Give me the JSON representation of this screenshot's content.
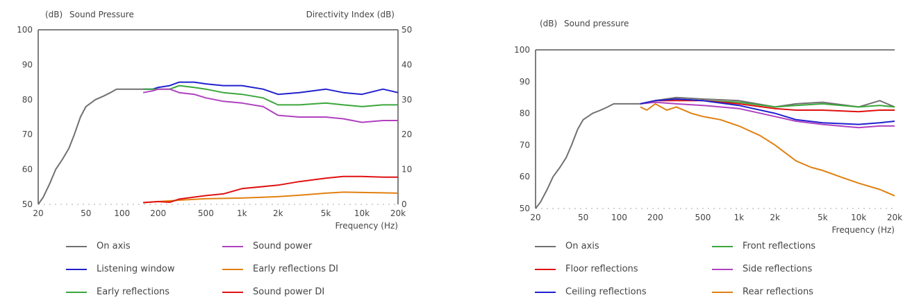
{
  "chart_data": [
    {
      "type": "line",
      "title": "Sound Pressure",
      "ylabel_left": "(dB)",
      "ylabel_right": "Directivity Index  (dB)",
      "xlabel": "Frequency  (Hz)",
      "xscale": "log",
      "xlim": [
        20,
        20000
      ],
      "ylim": [
        50,
        100
      ],
      "ylim_right": [
        0,
        50
      ],
      "xticks": [
        20,
        50,
        100,
        200,
        500,
        1000,
        2000,
        5000,
        10000,
        20000
      ],
      "xtick_labels": [
        "20",
        "50",
        "100",
        "200",
        "500",
        "1k",
        "2k",
        "5k",
        "10k",
        "20k"
      ],
      "yticks": [
        50,
        60,
        70,
        80,
        90,
        100
      ],
      "yticks_right": [
        0,
        10,
        20,
        30,
        40,
        50
      ],
      "legend_placement": "bottom",
      "series": [
        {
          "name": "On axis",
          "color": "#707070",
          "axis": "left",
          "x": [
            20,
            22,
            25,
            28,
            32,
            36,
            40,
            45,
            50,
            60,
            70,
            80,
            90,
            100,
            120,
            150
          ],
          "y": [
            50,
            52,
            56,
            60,
            63,
            66,
            70,
            75,
            78,
            80,
            81,
            82,
            83,
            83,
            83,
            83
          ]
        },
        {
          "name": "Listening window",
          "color": "#2020d0",
          "axis": "left",
          "x": [
            150,
            180,
            200,
            250,
            300,
            400,
            500,
            700,
            1000,
            1500,
            2000,
            3000,
            5000,
            7000,
            10000,
            15000,
            20000
          ],
          "y": [
            83,
            83,
            83.5,
            84,
            85,
            85,
            84.5,
            84,
            84,
            83,
            81.5,
            82,
            83,
            82,
            81.5,
            83,
            82
          ]
        },
        {
          "name": "Early reflections",
          "color": "#3aa63a",
          "axis": "left",
          "x": [
            150,
            180,
            200,
            250,
            300,
            400,
            500,
            700,
            1000,
            1500,
            2000,
            3000,
            5000,
            7000,
            10000,
            15000,
            20000
          ],
          "y": [
            83,
            83,
            83,
            83,
            84,
            83.5,
            83,
            82,
            81.5,
            80.5,
            78.5,
            78.5,
            79,
            78.5,
            78,
            78.5,
            78.5
          ]
        },
        {
          "name": "Sound power",
          "color": "#b040c0",
          "axis": "left",
          "x": [
            150,
            180,
            200,
            250,
            300,
            400,
            500,
            700,
            1000,
            1500,
            2000,
            3000,
            5000,
            7000,
            10000,
            15000,
            20000
          ],
          "y": [
            82,
            82.5,
            83,
            83,
            82,
            81.5,
            80.5,
            79.5,
            79,
            78,
            75.5,
            75,
            75,
            74.5,
            73.5,
            74,
            74
          ]
        },
        {
          "name": "Early reflections DI",
          "color": "#e08010",
          "axis": "right",
          "x": [
            150,
            200,
            300,
            500,
            1000,
            2000,
            3000,
            5000,
            7000,
            10000,
            15000,
            20000
          ],
          "y": [
            0.5,
            0.8,
            1.2,
            1.6,
            1.8,
            2.2,
            2.6,
            3.2,
            3.5,
            3.4,
            3.3,
            3.2
          ]
        },
        {
          "name": "Sound power DI",
          "color": "#e01010",
          "axis": "right",
          "x": [
            150,
            200,
            250,
            300,
            500,
            700,
            1000,
            2000,
            3000,
            5000,
            7000,
            10000,
            15000,
            20000
          ],
          "y": [
            0.5,
            0.8,
            0.6,
            1.5,
            2.5,
            3.0,
            4.5,
            5.5,
            6.5,
            7.5,
            8.0,
            8.0,
            7.8,
            7.8
          ]
        }
      ],
      "legend": [
        [
          "On axis",
          "Sound power"
        ],
        [
          "Listening window",
          "Early reflections DI"
        ],
        [
          "Early reflections",
          "Sound power DI"
        ]
      ]
    },
    {
      "type": "line",
      "title": "Sound pressure",
      "ylabel_left": "(dB)",
      "xlabel": "Frequency  (Hz)",
      "xscale": "log",
      "xlim": [
        20,
        20000
      ],
      "ylim": [
        50,
        100
      ],
      "xticks": [
        20,
        50,
        100,
        200,
        500,
        1000,
        2000,
        5000,
        10000,
        20000
      ],
      "xtick_labels": [
        "20",
        "50",
        "100",
        "200",
        "500",
        "1k",
        "2k",
        "5k",
        "10k",
        "20k"
      ],
      "yticks": [
        50,
        60,
        70,
        80,
        90,
        100
      ],
      "legend_placement": "bottom",
      "series": [
        {
          "name": "On axis",
          "color": "#707070",
          "x": [
            20,
            22,
            25,
            28,
            32,
            36,
            40,
            45,
            50,
            60,
            70,
            80,
            90,
            100,
            120,
            150,
            200,
            300,
            500,
            1000,
            2000,
            3000,
            5000,
            10000,
            15000,
            20000
          ],
          "y": [
            50,
            52,
            56,
            60,
            63,
            66,
            70,
            75,
            78,
            80,
            81,
            82,
            83,
            83,
            83,
            83,
            84,
            85,
            84.5,
            84,
            82,
            83,
            83.5,
            82,
            84,
            82
          ]
        },
        {
          "name": "Front reflections",
          "color": "#3aa63a",
          "x": [
            150,
            200,
            300,
            500,
            1000,
            2000,
            3000,
            5000,
            10000,
            15000,
            20000
          ],
          "y": [
            83,
            84,
            84.5,
            84,
            83.5,
            82,
            82.5,
            83,
            82,
            82.5,
            82
          ]
        },
        {
          "name": "Floor reflections",
          "color": "#e01010",
          "x": [
            150,
            200,
            300,
            500,
            1000,
            2000,
            3000,
            5000,
            10000,
            15000,
            20000
          ],
          "y": [
            83,
            84,
            84,
            84,
            83,
            81.5,
            81,
            81,
            80.5,
            81,
            81
          ]
        },
        {
          "name": "Side reflections",
          "color": "#b040c0",
          "x": [
            150,
            200,
            300,
            500,
            1000,
            2000,
            3000,
            5000,
            10000,
            15000,
            20000
          ],
          "y": [
            83,
            83.5,
            83,
            82.5,
            81.5,
            79,
            77.5,
            76.5,
            75.5,
            76,
            76
          ]
        },
        {
          "name": "Ceiling reflections",
          "color": "#2020d0",
          "x": [
            150,
            200,
            300,
            500,
            1000,
            2000,
            3000,
            5000,
            10000,
            15000,
            20000
          ],
          "y": [
            83,
            84,
            84.5,
            84,
            82.5,
            80,
            78,
            77,
            76.5,
            77,
            77.5
          ]
        },
        {
          "name": "Rear reflections",
          "color": "#e08010",
          "x": [
            150,
            170,
            200,
            250,
            300,
            400,
            500,
            700,
            1000,
            1500,
            2000,
            3000,
            4000,
            5000,
            7000,
            10000,
            15000,
            20000
          ],
          "y": [
            82,
            81,
            83,
            81,
            82,
            80,
            79,
            78,
            76,
            73,
            70,
            65,
            63,
            62,
            60,
            58,
            56,
            54
          ]
        }
      ],
      "legend": [
        [
          "On axis",
          "Front reflections"
        ],
        [
          "Floor reflections",
          "Side reflections"
        ],
        [
          "Ceiling reflections",
          "Rear reflections"
        ]
      ]
    }
  ]
}
